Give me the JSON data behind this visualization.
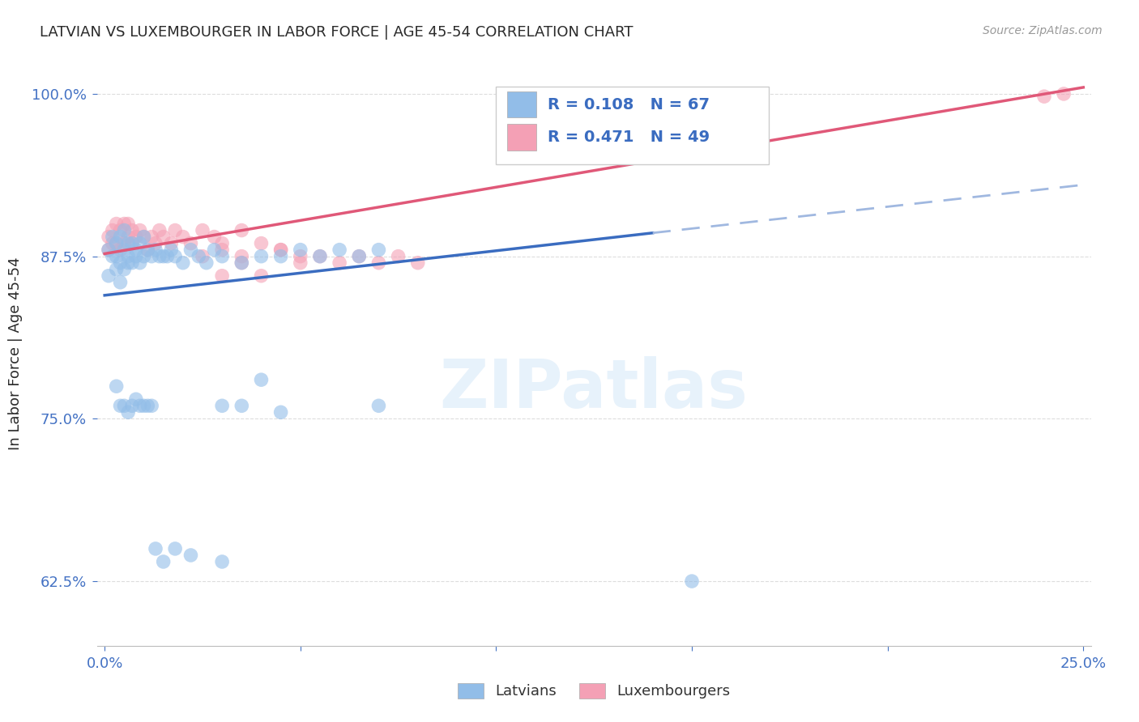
{
  "title": "LATVIAN VS LUXEMBOURGER IN LABOR FORCE | AGE 45-54 CORRELATION CHART",
  "source": "Source: ZipAtlas.com",
  "ylabel": "In Labor Force | Age 45-54",
  "xlim": [
    -0.002,
    0.252
  ],
  "ylim": [
    0.575,
    1.025
  ],
  "yticks": [
    0.625,
    0.75,
    0.875,
    1.0
  ],
  "ytick_labels": [
    "62.5%",
    "75.0%",
    "87.5%",
    "100.0%"
  ],
  "xticks": [
    0.0,
    0.05,
    0.1,
    0.15,
    0.2,
    0.25
  ],
  "xtick_labels": [
    "0.0%",
    "",
    "",
    "",
    "",
    "25.0%"
  ],
  "latvian_color": "#92BDE8",
  "luxembourger_color": "#F4A0B5",
  "trend_latvian_color": "#3A6CC0",
  "trend_latvian_dash_color": "#A0B8E0",
  "trend_luxembourger_color": "#E05878",
  "R_latvian": 0.108,
  "N_latvian": 67,
  "R_luxembourger": 0.471,
  "N_luxembourger": 49,
  "lat_trend_x0": 0.0,
  "lat_trend_y0": 0.845,
  "lat_trend_x1": 0.14,
  "lat_trend_y1": 0.893,
  "lat_trend_x2": 0.25,
  "lat_trend_y2": 0.93,
  "lux_trend_x0": 0.0,
  "lux_trend_y0": 0.877,
  "lux_trend_x1": 0.25,
  "lux_trend_y1": 1.005,
  "latvian_x": [
    0.001,
    0.001,
    0.002,
    0.002,
    0.003,
    0.003,
    0.003,
    0.004,
    0.004,
    0.004,
    0.005,
    0.005,
    0.005,
    0.006,
    0.006,
    0.006,
    0.007,
    0.007,
    0.008,
    0.008,
    0.009,
    0.009,
    0.01,
    0.01,
    0.011,
    0.012,
    0.013,
    0.014,
    0.015,
    0.016,
    0.017,
    0.018,
    0.02,
    0.022,
    0.024,
    0.026,
    0.028,
    0.03,
    0.035,
    0.04,
    0.045,
    0.05,
    0.055,
    0.06,
    0.065,
    0.07,
    0.03,
    0.035,
    0.04,
    0.045,
    0.003,
    0.004,
    0.005,
    0.006,
    0.007,
    0.008,
    0.009,
    0.01,
    0.011,
    0.012,
    0.013,
    0.015,
    0.018,
    0.022,
    0.03,
    0.15,
    0.07
  ],
  "latvian_y": [
    0.88,
    0.86,
    0.875,
    0.89,
    0.875,
    0.885,
    0.865,
    0.87,
    0.855,
    0.89,
    0.88,
    0.865,
    0.895,
    0.87,
    0.885,
    0.875,
    0.885,
    0.87,
    0.88,
    0.875,
    0.885,
    0.87,
    0.875,
    0.89,
    0.88,
    0.875,
    0.88,
    0.875,
    0.875,
    0.875,
    0.88,
    0.875,
    0.87,
    0.88,
    0.875,
    0.87,
    0.88,
    0.875,
    0.87,
    0.875,
    0.875,
    0.88,
    0.875,
    0.88,
    0.875,
    0.88,
    0.76,
    0.76,
    0.78,
    0.755,
    0.775,
    0.76,
    0.76,
    0.755,
    0.76,
    0.765,
    0.76,
    0.76,
    0.76,
    0.76,
    0.65,
    0.64,
    0.65,
    0.645,
    0.64,
    0.625,
    0.76
  ],
  "luxembourger_x": [
    0.001,
    0.001,
    0.002,
    0.002,
    0.003,
    0.003,
    0.004,
    0.004,
    0.005,
    0.005,
    0.006,
    0.006,
    0.007,
    0.007,
    0.008,
    0.009,
    0.01,
    0.011,
    0.012,
    0.013,
    0.014,
    0.015,
    0.017,
    0.018,
    0.02,
    0.022,
    0.025,
    0.028,
    0.03,
    0.035,
    0.025,
    0.03,
    0.035,
    0.04,
    0.045,
    0.05,
    0.03,
    0.035,
    0.04,
    0.045,
    0.05,
    0.055,
    0.06,
    0.065,
    0.07,
    0.075,
    0.08,
    0.24,
    0.245
  ],
  "luxembourger_y": [
    0.89,
    0.88,
    0.885,
    0.895,
    0.885,
    0.9,
    0.88,
    0.895,
    0.885,
    0.9,
    0.89,
    0.9,
    0.885,
    0.895,
    0.89,
    0.895,
    0.89,
    0.88,
    0.89,
    0.885,
    0.895,
    0.89,
    0.885,
    0.895,
    0.89,
    0.885,
    0.895,
    0.89,
    0.885,
    0.895,
    0.875,
    0.88,
    0.875,
    0.885,
    0.88,
    0.875,
    0.86,
    0.87,
    0.86,
    0.88,
    0.87,
    0.875,
    0.87,
    0.875,
    0.87,
    0.875,
    0.87,
    0.998,
    1.0
  ],
  "watermark_text": "ZIPatlas",
  "background_color": "#FFFFFF",
  "grid_color": "#DDDDDD",
  "tick_color": "#4472C4",
  "title_color": "#2A2A2A",
  "ylabel_color": "#2A2A2A",
  "scatter_size": 160,
  "scatter_alpha": 0.6
}
